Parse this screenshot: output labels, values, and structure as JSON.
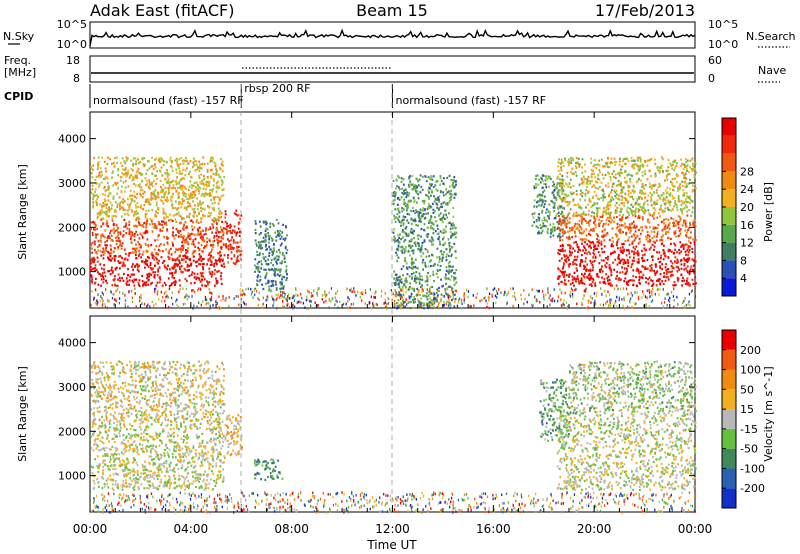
{
  "header": {
    "station": "Adak East (fitACF)",
    "beam": "Beam 15",
    "date": "17/Feb/2013"
  },
  "top_panels": {
    "nsky_label": "N.Sky",
    "nsky_tick_hi": "10^5",
    "nsky_tick_lo": "10^0",
    "nsearch_label": "N.Search",
    "nsearch_tick_hi": "10^5",
    "nsearch_tick_lo": "10^0",
    "freq_label_1": "Freq.",
    "freq_label_2": "[MHz]",
    "freq_tick_hi": "18",
    "freq_tick_lo": "8",
    "nave_label": "Nave",
    "nave_tick_hi": "60",
    "nave_tick_lo": "0",
    "cpid_label": "CPID",
    "cpid_segments": [
      {
        "start_h": 0,
        "end_h": 6,
        "label": "normalsound (fast) -157 RF"
      },
      {
        "start_h": 6,
        "end_h": 12,
        "label": "rbsp 200 RF"
      },
      {
        "start_h": 12,
        "end_h": 24,
        "label": "normalsound (fast) -157 RF"
      }
    ]
  },
  "x_axis": {
    "title": "Time UT",
    "ticks": [
      "00:00",
      "04:00",
      "08:00",
      "12:00",
      "16:00",
      "20:00",
      "00:00"
    ]
  },
  "chart_data": [
    {
      "type": "heatmap",
      "name": "power",
      "ylabel": "Slant Range [km]",
      "yticks": [
        "1000",
        "2000",
        "3000",
        "4000"
      ],
      "ylim": [
        180,
        4600
      ],
      "xlim": [
        0,
        24
      ],
      "colorbar": {
        "title": "Power [dB]",
        "ticks": [
          "4",
          "8",
          "12",
          "16",
          "20",
          "24",
          "28"
        ],
        "colors": [
          "#0a18d8",
          "#2a50b8",
          "#3f7e62",
          "#5aa84e",
          "#8fc63e",
          "#f0b020",
          "#f08a10",
          "#f05a10",
          "#f02a08",
          "#e80000"
        ]
      },
      "regions": [
        {
          "t0": 0.0,
          "t1": 5.3,
          "r0": 700,
          "r1": 1400,
          "level": 0.95
        },
        {
          "t0": 0.0,
          "t1": 5.3,
          "r0": 1400,
          "r1": 2200,
          "level": 0.8
        },
        {
          "t0": 0.0,
          "t1": 5.3,
          "r0": 2200,
          "r1": 3600,
          "level": 0.55
        },
        {
          "t0": 5.3,
          "t1": 6.0,
          "r0": 1200,
          "r1": 2400,
          "level": 0.85
        },
        {
          "t0": 6.5,
          "t1": 7.8,
          "r0": 600,
          "r1": 2200,
          "level": 0.25
        },
        {
          "t0": 12.0,
          "t1": 14.5,
          "r0": 200,
          "r1": 3200,
          "level": 0.3
        },
        {
          "t0": 17.5,
          "t1": 18.8,
          "r0": 1800,
          "r1": 3200,
          "level": 0.3
        },
        {
          "t0": 18.5,
          "t1": 24.0,
          "r0": 700,
          "r1": 1700,
          "level": 0.95
        },
        {
          "t0": 18.5,
          "t1": 24.0,
          "r0": 1700,
          "r1": 2300,
          "level": 0.75
        },
        {
          "t0": 18.5,
          "t1": 24.0,
          "r0": 2300,
          "r1": 3600,
          "level": 0.5
        }
      ]
    },
    {
      "type": "heatmap",
      "name": "velocity",
      "ylabel": "Slant Range [km]",
      "yticks": [
        "1000",
        "2000",
        "3000",
        "4000"
      ],
      "ylim": [
        180,
        4600
      ],
      "xlim": [
        0,
        24
      ],
      "colorbar": {
        "title": "Velocity [m s^-1]",
        "ticks": [
          "200",
          "100",
          "50",
          "15",
          "-15",
          "-50",
          "-100",
          "-200"
        ],
        "colors": [
          "#1030c8",
          "#2a60b0",
          "#3f8a5a",
          "#66c040",
          "#b8b8b8",
          "#f0b020",
          "#f08a10",
          "#f05a10",
          "#e80000"
        ]
      },
      "regions": [
        {
          "t0": 0.0,
          "t1": 5.3,
          "r0": 700,
          "r1": 2200,
          "level": 0.5
        },
        {
          "t0": 0.0,
          "t1": 5.3,
          "r0": 2200,
          "r1": 3600,
          "level": 0.55
        },
        {
          "t0": 5.3,
          "t1": 6.0,
          "r0": 1400,
          "r1": 2400,
          "level": 0.6
        },
        {
          "t0": 6.5,
          "t1": 7.6,
          "r0": 900,
          "r1": 1400,
          "level": 0.3
        },
        {
          "t0": 17.8,
          "t1": 19.0,
          "r0": 1800,
          "r1": 3200,
          "level": 0.35
        },
        {
          "t0": 18.5,
          "t1": 24.0,
          "r0": 700,
          "r1": 2400,
          "level": 0.5
        },
        {
          "t0": 19.0,
          "t1": 24.0,
          "r0": 2400,
          "r1": 3600,
          "level": 0.45
        }
      ]
    }
  ]
}
